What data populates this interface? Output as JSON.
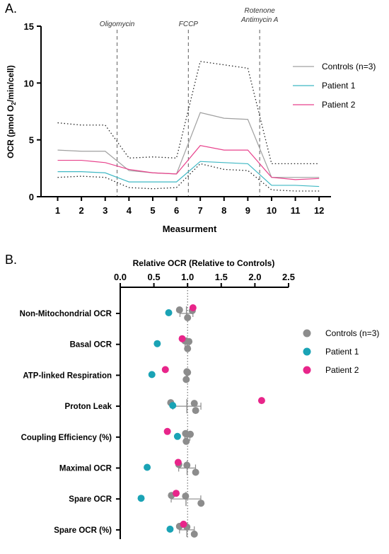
{
  "chart_data": [
    {
      "panel_label": "A.",
      "type": "line",
      "xlabel": "Measurment",
      "ylabel": "OCR (pmol O",
      "ylabel_sub": "2",
      "ylabel_tail": "/min/cell)",
      "x": [
        1,
        2,
        3,
        4,
        5,
        6,
        7,
        8,
        9,
        10,
        11,
        12
      ],
      "xlim": [
        0.3,
        12.5
      ],
      "ylim": [
        0,
        15
      ],
      "yticks": [
        0,
        5,
        10,
        15
      ],
      "injections": [
        {
          "label": "Oligomycin",
          "x": 3.5
        },
        {
          "label": "FCCP",
          "x": 6.5
        },
        {
          "label": "Rotenone",
          "label2": "Antimycin  A",
          "x": 9.5
        }
      ],
      "series": [
        {
          "name": "Controls (n=3)",
          "color": "#a0a0a0",
          "values": [
            4.1,
            4.0,
            4.0,
            2.3,
            2.1,
            2.0,
            7.4,
            6.9,
            6.8,
            1.7,
            1.7,
            1.7
          ]
        },
        {
          "name": "Patient 1",
          "color": "#3fb8c4",
          "values": [
            2.2,
            2.2,
            2.1,
            1.3,
            1.3,
            1.3,
            3.1,
            3.0,
            2.9,
            1.0,
            1.0,
            0.9
          ]
        },
        {
          "name": "Patient 2",
          "color": "#e8428c",
          "values": [
            3.2,
            3.2,
            3.0,
            2.4,
            2.1,
            2.0,
            4.5,
            4.1,
            4.1,
            1.7,
            1.5,
            1.6
          ]
        }
      ],
      "bands": [
        {
          "values": [
            6.5,
            6.3,
            6.3,
            3.4,
            3.5,
            3.4,
            11.9,
            11.6,
            11.3,
            2.9,
            2.9,
            2.9
          ]
        },
        {
          "values": [
            1.7,
            1.8,
            1.7,
            0.8,
            0.7,
            0.8,
            2.9,
            2.4,
            2.3,
            0.6,
            0.5,
            0.5
          ]
        }
      ]
    },
    {
      "panel_label": "B.",
      "type": "scatter",
      "title": "Relative OCR (Relative to Controls)",
      "xlim": [
        0,
        2.5
      ],
      "xticks": [
        "0.0",
        "0.5",
        "1.0",
        "1.5",
        "2.0",
        "2.5"
      ],
      "reference_line": 1.0,
      "categories": [
        "Non-Mitochondrial OCR",
        "Basal OCR",
        "ATP-linked Respiration",
        "Proton Leak",
        "Coupling Efficiency (%)",
        "Maximal OCR",
        "Spare OCR",
        "Spare OCR (%)"
      ],
      "series": [
        {
          "name": "Controls (n=3)",
          "color": "#8c8c8c",
          "values": [
            [
              0.88,
              1.07,
              1.0
            ],
            [
              0.96,
              1.02,
              1.0
            ],
            [
              0.99,
              1.0,
              0.98
            ],
            [
              0.75,
              1.1,
              1.12
            ],
            [
              0.97,
              1.04,
              0.98
            ],
            [
              0.87,
              0.99,
              1.12
            ],
            [
              0.76,
              0.97,
              1.2
            ],
            [
              0.88,
              0.99,
              1.1
            ]
          ]
        },
        {
          "name": "Patient 1",
          "color": "#1aa3b5",
          "values": [
            0.72,
            0.55,
            0.47,
            0.78,
            0.85,
            0.4,
            0.31,
            0.74
          ]
        },
        {
          "name": "Patient 2",
          "color": "#e8258a",
          "values": [
            1.08,
            0.92,
            0.67,
            2.1,
            0.7,
            0.86,
            0.83,
            0.94
          ]
        }
      ]
    }
  ]
}
